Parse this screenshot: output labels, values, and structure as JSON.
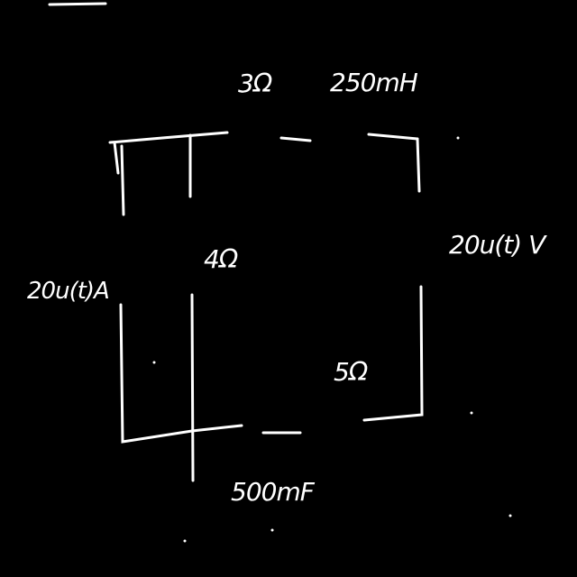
{
  "diagram": {
    "type": "hand-drawn circuit schematic",
    "ink_color": "#ffffff",
    "background_color": "#000000",
    "components": {
      "top_resistor": "3Ω",
      "top_inductor": "250mH",
      "right_voltage_source": "20u(t) V",
      "left_current_source": "20u(t)A",
      "middle_resistor": "4Ω",
      "bottom_right_resistor": "5Ω",
      "bottom_capacitor": "500mF"
    }
  }
}
